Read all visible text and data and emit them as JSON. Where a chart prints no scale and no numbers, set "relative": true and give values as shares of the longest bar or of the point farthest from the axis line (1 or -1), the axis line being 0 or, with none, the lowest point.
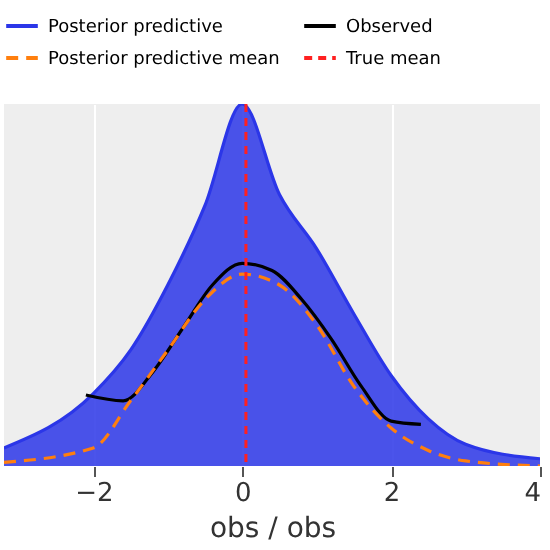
{
  "chart_data": {
    "type": "line",
    "relative": true,
    "xlabel": "obs / obs",
    "x": [
      -3.2,
      -2,
      -1.5,
      -1,
      -0.5,
      0,
      0.5,
      1,
      1.5,
      2,
      2.5,
      3,
      4
    ],
    "xlim": [
      -3.2,
      4.0
    ],
    "xticks": [
      -2,
      0,
      2,
      4
    ],
    "grid": "x",
    "legend": "top",
    "series": [
      {
        "name": "Posterior predictive",
        "type": "area",
        "color": "#2b36e8",
        "values": [
          0.05,
          0.2,
          0.32,
          0.5,
          0.72,
          1.0,
          0.75,
          0.6,
          0.42,
          0.25,
          0.13,
          0.06,
          0.02
        ]
      },
      {
        "name": "Observed",
        "color": "#000000",
        "x": [
          -2.1,
          -1.6,
          -1.2,
          -0.8,
          -0.4,
          0,
          0.4,
          0.8,
          1.2,
          1.6,
          2.0,
          2.4
        ],
        "values": [
          0.196,
          0.18,
          0.26,
          0.38,
          0.5,
          0.56,
          0.54,
          0.46,
          0.35,
          0.22,
          0.124,
          0.115
        ]
      },
      {
        "name": "Posterior predictive mean",
        "color": "#ff7f0e",
        "line_style": "dashed",
        "values": [
          0.01,
          0.05,
          0.18,
          0.32,
          0.46,
          0.53,
          0.5,
          0.39,
          0.22,
          0.105,
          0.043,
          0.014,
          0
        ]
      }
    ],
    "ref_lines": [
      {
        "axis": "x",
        "value": 0.05,
        "label": "True mean",
        "color": "#ff2020",
        "line_style": "dashed"
      }
    ]
  }
}
